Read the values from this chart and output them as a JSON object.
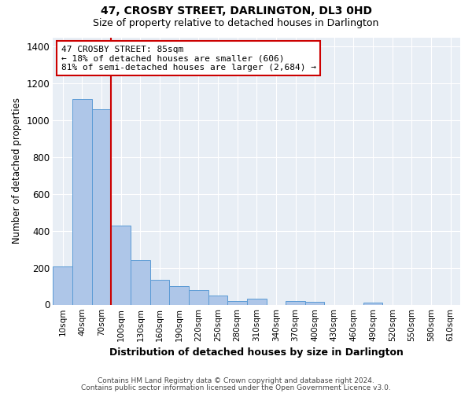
{
  "title": "47, CROSBY STREET, DARLINGTON, DL3 0HD",
  "subtitle": "Size of property relative to detached houses in Darlington",
  "xlabel": "Distribution of detached houses by size in Darlington",
  "ylabel": "Number of detached properties",
  "categories": [
    "10sqm",
    "40sqm",
    "70sqm",
    "100sqm",
    "130sqm",
    "160sqm",
    "190sqm",
    "220sqm",
    "250sqm",
    "280sqm",
    "310sqm",
    "340sqm",
    "370sqm",
    "400sqm",
    "430sqm",
    "460sqm",
    "490sqm",
    "520sqm",
    "550sqm",
    "580sqm",
    "610sqm"
  ],
  "values": [
    205,
    1115,
    1060,
    430,
    240,
    135,
    100,
    80,
    50,
    20,
    30,
    0,
    20,
    15,
    0,
    0,
    10,
    0,
    0,
    0,
    0
  ],
  "bar_color": "#aec6e8",
  "bar_edge_color": "#5b9bd5",
  "line_color": "#cc0000",
  "annotation_text": "47 CROSBY STREET: 85sqm\n← 18% of detached houses are smaller (606)\n81% of semi-detached houses are larger (2,684) →",
  "annotation_box_color": "#ffffff",
  "annotation_box_edge": "#cc0000",
  "plot_bg_color": "#e8eef5",
  "footer1": "Contains HM Land Registry data © Crown copyright and database right 2024.",
  "footer2": "Contains public sector information licensed under the Open Government Licence v3.0.",
  "ylim": [
    0,
    1450
  ],
  "yticks": [
    0,
    200,
    400,
    600,
    800,
    1000,
    1200,
    1400
  ]
}
